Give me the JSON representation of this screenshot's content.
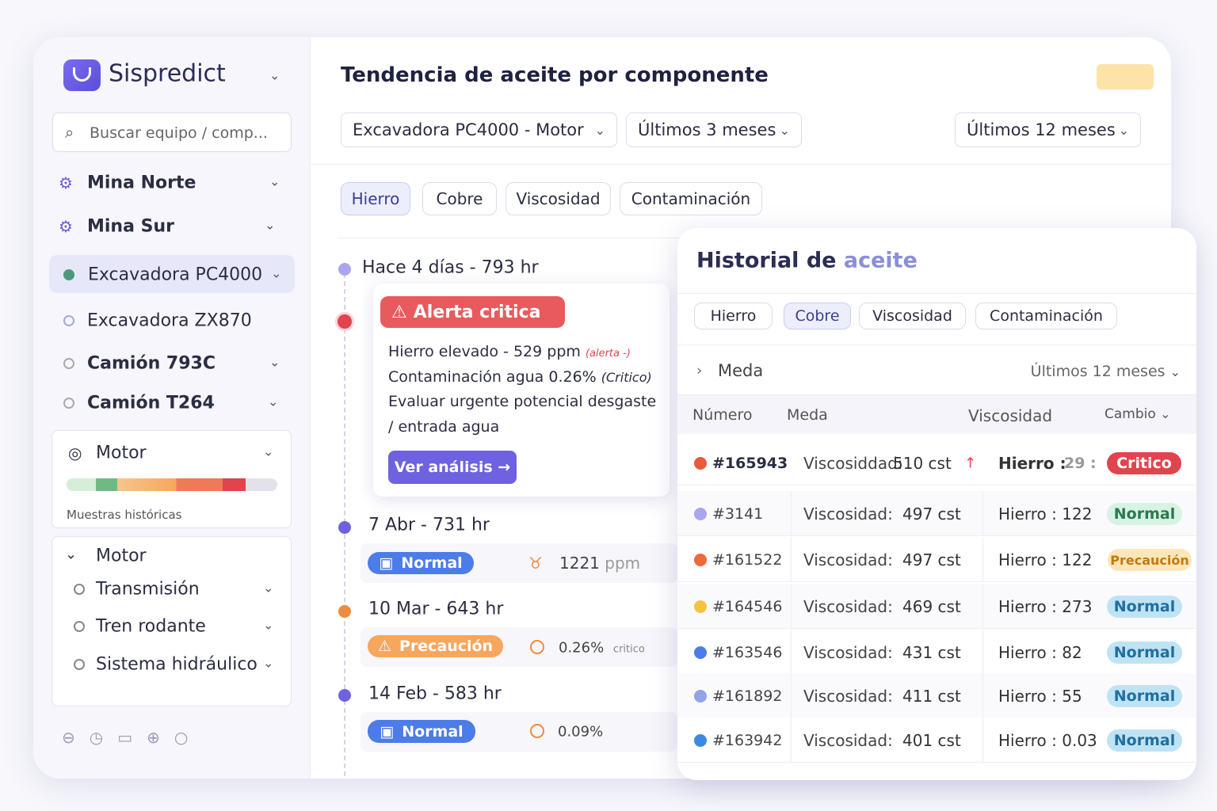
{
  "sidebar": {
    "brand": "Sispredict",
    "search": "Buscar equipo / comp...",
    "nav": [
      "Mina Norte",
      "Mina Sur",
      "Excavadora PC4000",
      "Excavadora ZX870",
      "Camión 793C",
      "Camión T264"
    ],
    "card": {
      "title": "Motor",
      "caption": "Muestras históricas"
    },
    "submenu": {
      "title": "Motor",
      "items": [
        "Transmisión",
        "Tren rodante",
        "Sistema hidráulico"
      ]
    }
  },
  "main": {
    "title": "Tendencia de aceite por componente",
    "selects": [
      "Excavadora PC4000 - Motor",
      "Últimos 3 meses",
      "Últimos 12 meses"
    ],
    "tabs": [
      "Hierro",
      "Cobre",
      "Viscosidad",
      "Contaminación"
    ],
    "timeline": [
      {
        "label": "Hace 4 días - 793 hr",
        "alert": {
          "title": "Alerta critica",
          "lines": [
            {
              "text": "Hierro elevado - 529 ppm",
              "note": "(alerta -)"
            },
            {
              "text": "Contaminación agua 0.26%",
              "note": "(Critico)"
            },
            {
              "text": "Evaluar urgente potencial desgaste"
            },
            {
              "text": "/ entrada agua"
            }
          ],
          "button": "Ver análisis →"
        }
      },
      {
        "label": "7 Abr - 731 hr",
        "status": "Normal",
        "value": "1221",
        "unit": "ppm"
      },
      {
        "label": "10 Mar - 643 hr",
        "status": "Precaución",
        "value": "0.26%",
        "unit": "critico"
      },
      {
        "label": "14 Feb - 583 hr",
        "status": "Normal",
        "value": "0.09%"
      }
    ]
  },
  "panel": {
    "title": "Historial de",
    "title_accent": "aceite",
    "tabs": [
      "Hierro",
      "Cobre",
      "Viscosidad",
      "Contaminación"
    ],
    "filter": "Meda",
    "range": "Últimos 12 meses",
    "columns": [
      "Número",
      "Meda",
      "Viscosidad",
      "Cambio"
    ],
    "rows": [
      {
        "id": "#165943",
        "label": "Viscosiddad:",
        "visc": "510 cst",
        "iron": "Hierro :",
        "iron_value": "29 :",
        "status": "Critico"
      },
      {
        "id": "#3141",
        "label": "Viscosidad:",
        "visc": "497 cst",
        "iron": "Hierro : 122",
        "status": "Normal"
      },
      {
        "id": "#161522",
        "label": "Viscosidad:",
        "visc": "497 cst",
        "iron": "Hierro : 122",
        "status": "Precaución"
      },
      {
        "id": "#164546",
        "label": "Viscosidad:",
        "visc": "469 cst",
        "iron": "Hierro : 273",
        "status": "Normal"
      },
      {
        "id": "#163546",
        "label": "Viscosidad:",
        "visc": "431 cst",
        "iron": "Hierro : 82",
        "status": "Normal"
      },
      {
        "id": "#161892",
        "label": "Viscosidad:",
        "visc": "411 cst",
        "iron": "Hierro : 55",
        "status": "Normal"
      },
      {
        "id": "#163942",
        "label": "Viscosidad:",
        "visc": "401 cst",
        "iron": "Hierro : 0.03",
        "status": "Normal"
      }
    ]
  }
}
